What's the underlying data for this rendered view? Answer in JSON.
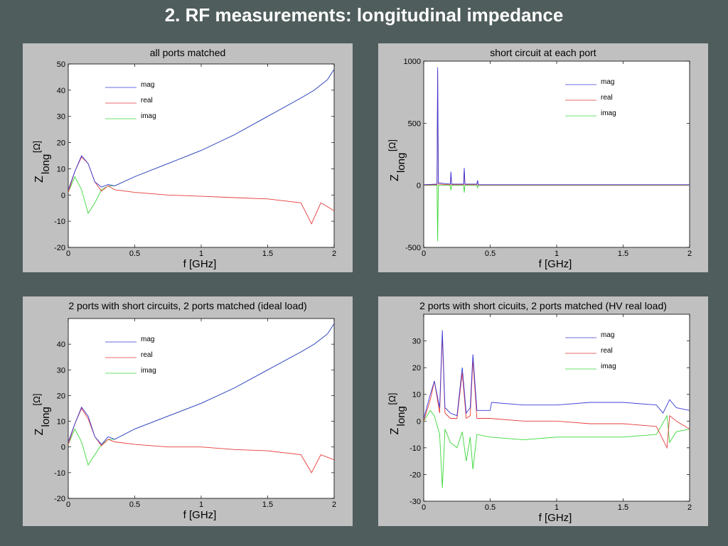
{
  "slide": {
    "title": "2. RF measurements: longitudinal impedance"
  },
  "colors": {
    "mag": "#3a3ad8",
    "real": "#e83a3a",
    "imag": "#3ad83a",
    "panel": "#c0c0c0",
    "background": "#4f5d5c"
  },
  "chart_data": [
    {
      "type": "line",
      "title": "all ports matched",
      "xlabel": "f [GHz]",
      "ylabel_main": "Z",
      "ylabel_sub": "long",
      "ylabel_unit": "[Ω]",
      "xlim": [
        0,
        2
      ],
      "ylim": [
        -20,
        50
      ],
      "xticks": [
        0,
        0.5,
        1,
        1.5,
        2
      ],
      "yticks": [
        -20,
        -10,
        0,
        10,
        20,
        30,
        40,
        50
      ],
      "legend": [
        "mag",
        "real",
        "imag"
      ],
      "legend_position": "top-left",
      "series": [
        {
          "name": "mag",
          "x": [
            0,
            0.05,
            0.1,
            0.15,
            0.2,
            0.25,
            0.3,
            0.35,
            0.5,
            0.75,
            1.0,
            1.25,
            1.5,
            1.75,
            1.85,
            1.95,
            2.0
          ],
          "y": [
            2,
            9,
            15,
            12,
            5,
            3,
            4,
            3.5,
            7,
            12,
            17,
            23,
            30,
            37,
            40,
            44,
            48
          ]
        },
        {
          "name": "real",
          "x": [
            0,
            0.05,
            0.1,
            0.15,
            0.2,
            0.25,
            0.3,
            0.35,
            0.5,
            0.75,
            1.0,
            1.25,
            1.5,
            1.75,
            1.83,
            1.9,
            2.0
          ],
          "y": [
            1,
            9,
            14.5,
            12,
            5,
            1.5,
            3.5,
            2,
            1,
            0,
            -0.5,
            -1,
            -1.5,
            -3,
            -11,
            -3,
            -6
          ]
        },
        {
          "name": "imag",
          "x": [
            0,
            0.05,
            0.1,
            0.15,
            0.2,
            0.25,
            0.3,
            0.35,
            0.5,
            0.75,
            1.0,
            1.25,
            1.5,
            1.75,
            1.85,
            1.95,
            2.0
          ],
          "y": [
            1,
            7,
            2,
            -7,
            -3,
            2,
            3.5,
            3.5,
            7,
            12,
            17,
            23,
            30,
            37,
            40,
            44,
            48
          ]
        }
      ]
    },
    {
      "type": "line",
      "title": "short circuit at each port",
      "xlabel": "f [GHz]",
      "ylabel_main": "Z",
      "ylabel_sub": "long",
      "ylabel_unit": "[Ω]",
      "xlim": [
        0,
        2
      ],
      "ylim": [
        -500,
        1000
      ],
      "xticks": [
        0,
        0.5,
        1,
        1.5,
        2
      ],
      "yticks": [
        -500,
        0,
        500,
        1000
      ],
      "legend": [
        "mag",
        "real",
        "imag"
      ],
      "legend_position": "top-right",
      "series": [
        {
          "name": "mag",
          "x": [
            0,
            0.1,
            0.105,
            0.11,
            0.2,
            0.205,
            0.21,
            0.3,
            0.305,
            0.31,
            0.4,
            0.405,
            0.41,
            0.5,
            1.0,
            1.5,
            2.0
          ],
          "y": [
            5,
            10,
            950,
            20,
            10,
            110,
            10,
            10,
            140,
            10,
            10,
            40,
            5,
            5,
            5,
            5,
            5
          ]
        },
        {
          "name": "real",
          "x": [
            0,
            0.1,
            0.105,
            0.11,
            0.2,
            0.205,
            0.21,
            0.3,
            0.305,
            0.31,
            0.4,
            0.405,
            0.41,
            0.5,
            1.0,
            1.5,
            2.0
          ],
          "y": [
            2,
            5,
            920,
            10,
            5,
            100,
            5,
            5,
            130,
            5,
            5,
            35,
            2,
            2,
            2,
            2,
            2
          ]
        },
        {
          "name": "imag",
          "x": [
            0,
            0.1,
            0.105,
            0.11,
            0.2,
            0.205,
            0.21,
            0.3,
            0.305,
            0.31,
            0.4,
            0.405,
            0.41,
            0.5,
            1.0,
            1.5,
            2.0
          ],
          "y": [
            0,
            0,
            -450,
            0,
            0,
            -40,
            0,
            0,
            -60,
            0,
            0,
            -20,
            0,
            0,
            0,
            0,
            0
          ]
        }
      ]
    },
    {
      "type": "line",
      "title": "2 ports with short circuits, 2 ports matched (ideal load)",
      "xlabel": "f [GHz]",
      "ylabel_main": "Z",
      "ylabel_sub": "long",
      "ylabel_unit": "[Ω]",
      "xlim": [
        0,
        2
      ],
      "ylim": [
        -20,
        50
      ],
      "xticks": [
        0,
        0.5,
        1,
        1.5,
        2
      ],
      "yticks": [
        -20,
        -10,
        0,
        10,
        20,
        30,
        40
      ],
      "legend": [
        "mag",
        "real",
        "imag"
      ],
      "legend_position": "top-left",
      "series": [
        {
          "name": "mag",
          "x": [
            0,
            0.05,
            0.1,
            0.15,
            0.2,
            0.25,
            0.3,
            0.35,
            0.5,
            0.75,
            1.0,
            1.25,
            1.5,
            1.75,
            1.85,
            1.95,
            2.0
          ],
          "y": [
            2,
            9,
            15.5,
            12,
            4,
            1,
            4,
            3,
            7,
            12,
            17,
            23,
            30,
            37,
            40,
            44,
            48
          ]
        },
        {
          "name": "real",
          "x": [
            0,
            0.05,
            0.1,
            0.15,
            0.2,
            0.25,
            0.3,
            0.35,
            0.5,
            0.75,
            1.0,
            1.25,
            1.5,
            1.75,
            1.83,
            1.9,
            2.0
          ],
          "y": [
            1,
            9,
            15,
            11,
            4,
            0.5,
            3,
            2,
            1,
            0,
            0,
            -1,
            -1.5,
            -3,
            -10,
            -3,
            -5
          ]
        },
        {
          "name": "imag",
          "x": [
            0,
            0.05,
            0.1,
            0.15,
            0.2,
            0.25,
            0.3,
            0.35,
            0.5,
            0.75,
            1.0,
            1.25,
            1.5,
            1.75,
            1.85,
            1.95,
            2.0
          ],
          "y": [
            1,
            7,
            2,
            -7,
            -3,
            1,
            3,
            3,
            7,
            12,
            17,
            23,
            30,
            37,
            40,
            44,
            48
          ]
        }
      ]
    },
    {
      "type": "line",
      "title": "2 ports with short cicuits, 2 ports matched (HV real load)",
      "xlabel": "f [GHz]",
      "ylabel_main": "Z",
      "ylabel_sub": "long",
      "ylabel_unit": "[Ω]",
      "xlim": [
        0,
        2
      ],
      "ylim": [
        -30,
        40
      ],
      "xticks": [
        0,
        0.5,
        1,
        1.5,
        2
      ],
      "yticks": [
        -30,
        -20,
        -10,
        0,
        10,
        20,
        30
      ],
      "legend": [
        "mag",
        "real",
        "imag"
      ],
      "legend_position": "top-right",
      "series": [
        {
          "name": "mag",
          "x": [
            0,
            0.05,
            0.08,
            0.12,
            0.14,
            0.16,
            0.2,
            0.25,
            0.29,
            0.32,
            0.35,
            0.37,
            0.4,
            0.5,
            0.51,
            0.75,
            1.0,
            1.25,
            1.5,
            1.75,
            1.8,
            1.85,
            1.9,
            2.0
          ],
          "y": [
            1,
            10,
            15,
            5,
            34,
            5,
            3,
            2,
            20,
            3,
            5,
            25,
            4,
            4,
            7,
            6,
            6,
            7,
            7,
            6,
            3,
            8,
            5,
            4
          ]
        },
        {
          "name": "real",
          "x": [
            0,
            0.05,
            0.08,
            0.12,
            0.14,
            0.16,
            0.2,
            0.25,
            0.29,
            0.32,
            0.35,
            0.37,
            0.4,
            0.5,
            0.75,
            1.0,
            1.25,
            1.5,
            1.75,
            1.83,
            1.85,
            1.9,
            2.0
          ],
          "y": [
            0,
            8,
            15,
            3,
            32,
            3,
            1,
            1,
            18,
            1,
            2,
            23,
            1,
            1,
            0,
            0,
            -1,
            -1,
            -2,
            -10,
            2,
            0,
            -3
          ]
        },
        {
          "name": "imag",
          "x": [
            0,
            0.05,
            0.08,
            0.12,
            0.14,
            0.16,
            0.2,
            0.25,
            0.29,
            0.32,
            0.35,
            0.37,
            0.4,
            0.5,
            0.75,
            1.0,
            1.25,
            1.5,
            1.75,
            1.83,
            1.85,
            1.9,
            2.0
          ],
          "y": [
            0,
            4,
            2,
            -5,
            -25,
            -3,
            -8,
            -10,
            -4,
            -15,
            -6,
            -18,
            -5,
            -6,
            -7,
            -6,
            -6,
            -6,
            -5,
            2,
            -8,
            -4,
            -3
          ]
        }
      ]
    }
  ]
}
